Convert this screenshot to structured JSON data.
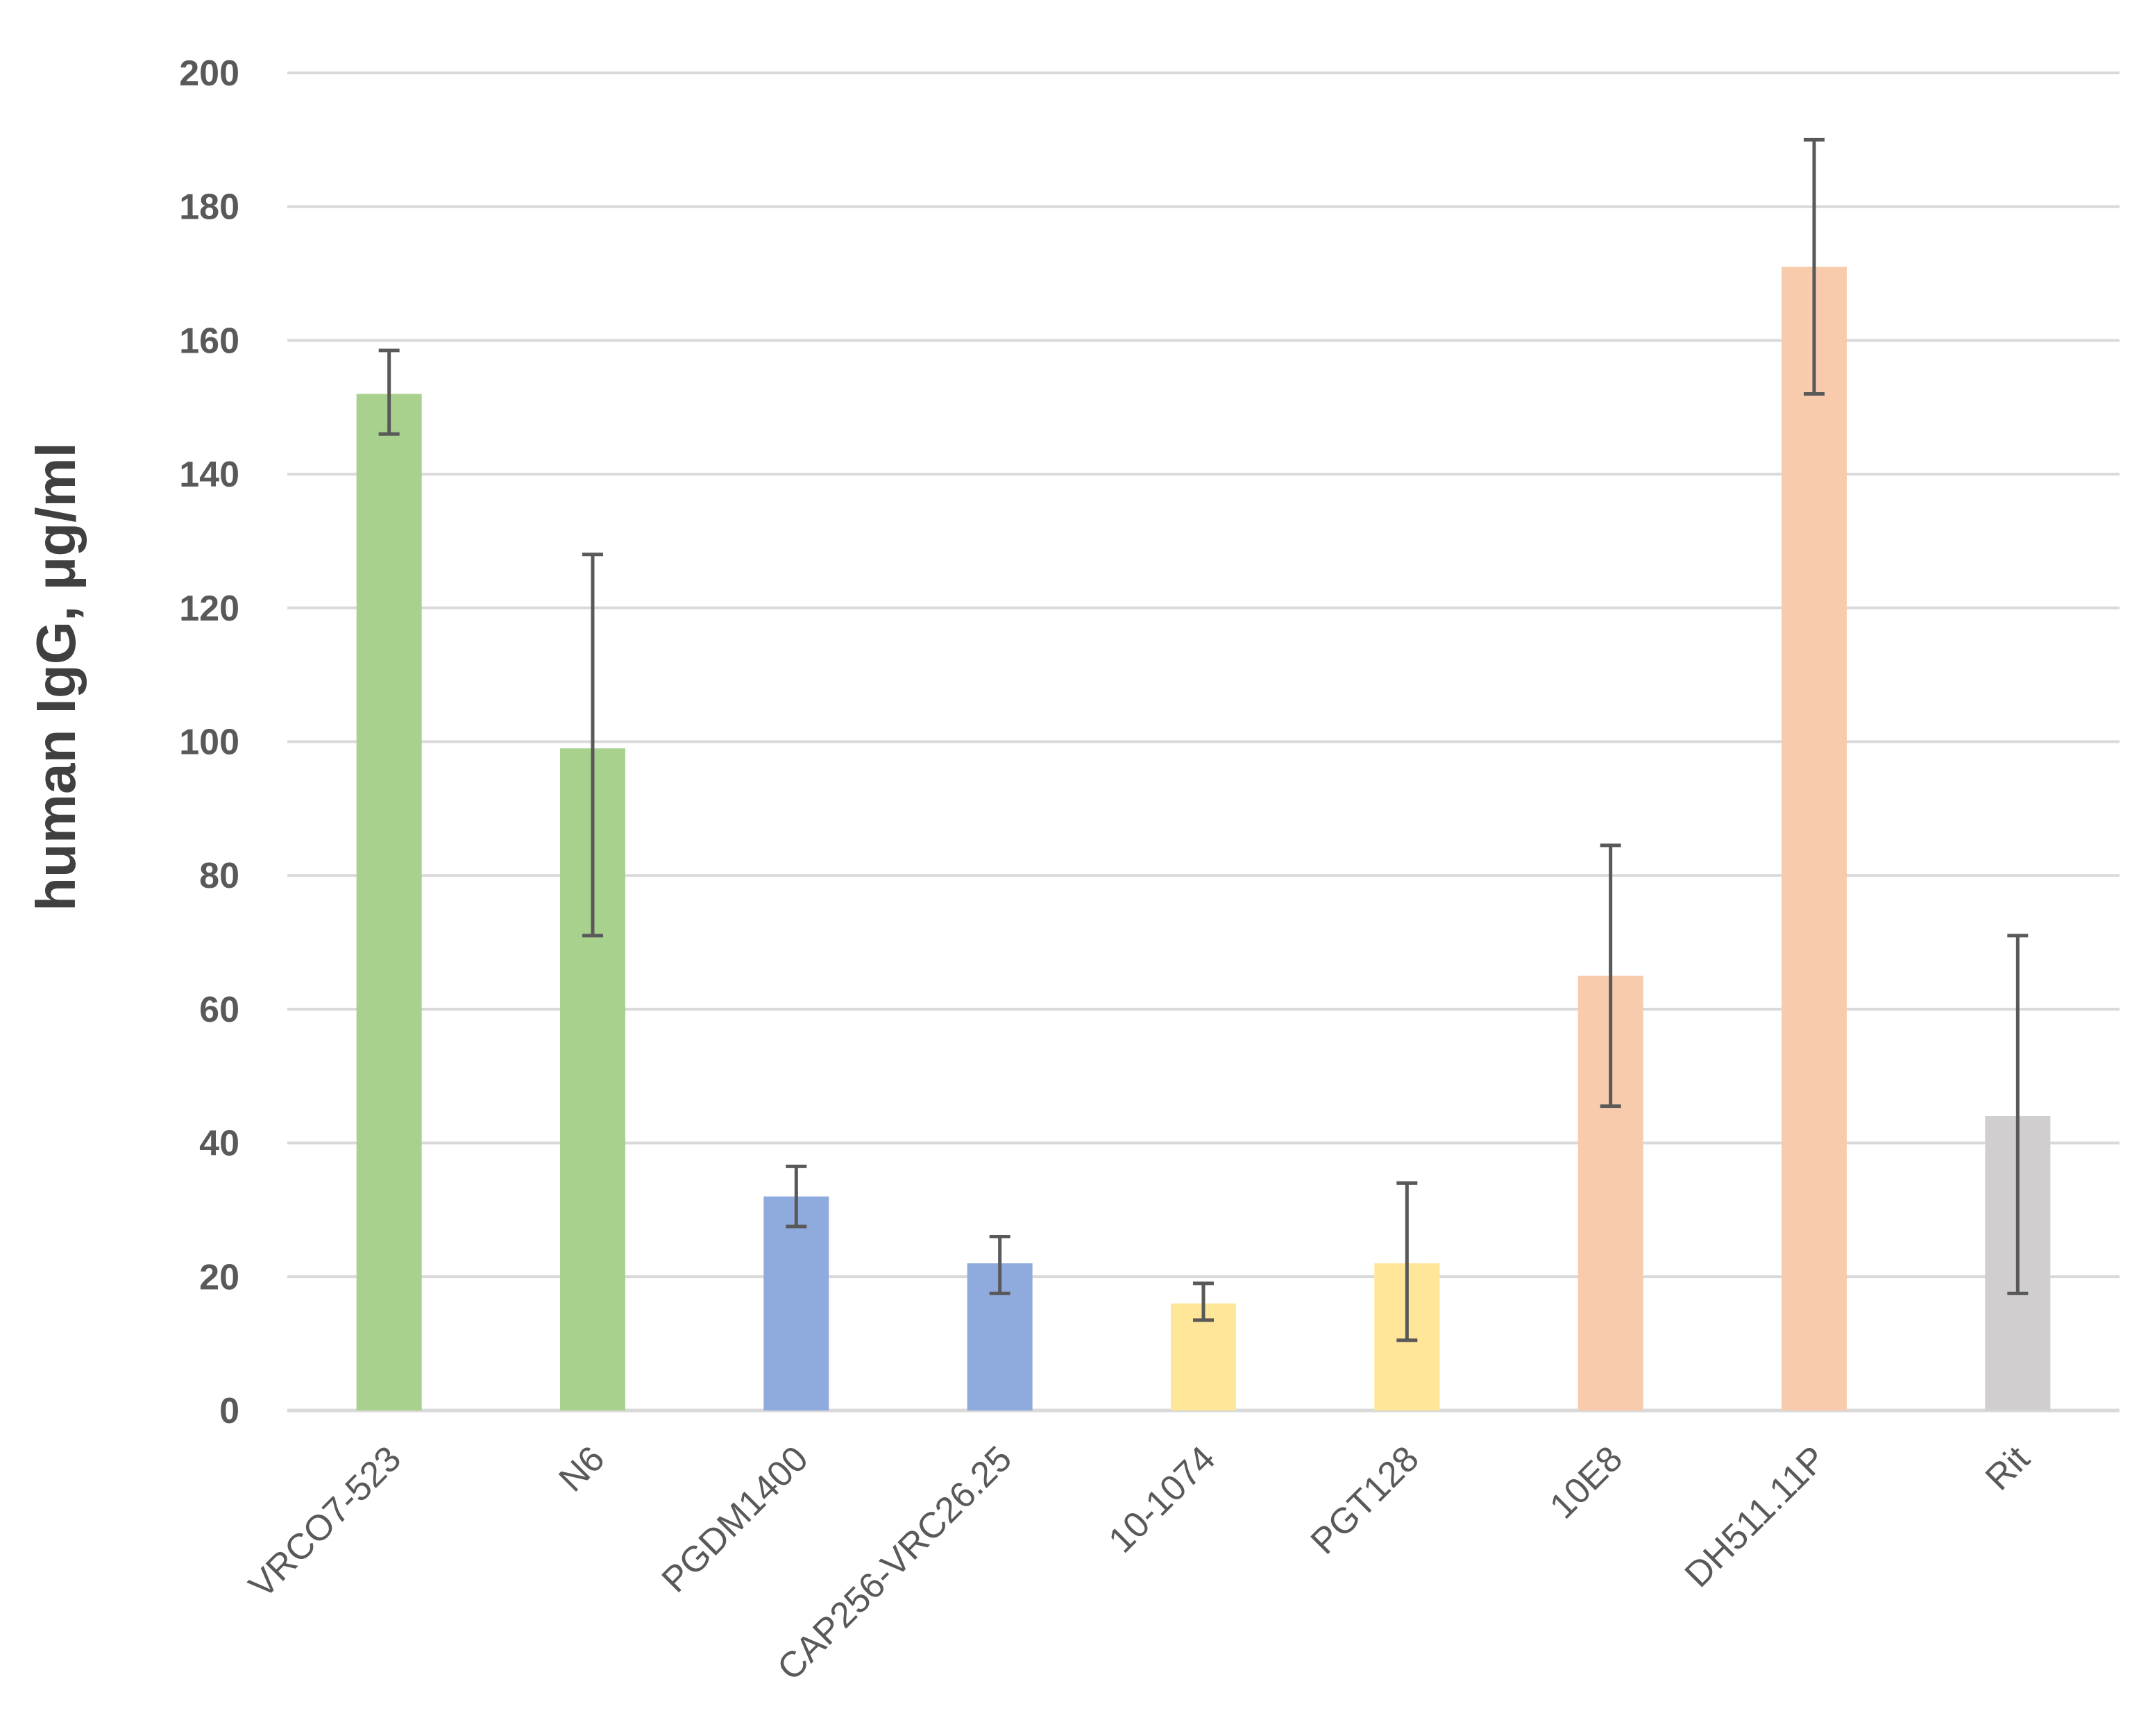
{
  "chart_data": {
    "type": "bar",
    "title": "",
    "xlabel": "",
    "ylabel": "human IgG, μg/ml",
    "ylim": [
      0,
      200
    ],
    "yticks": [
      0,
      20,
      40,
      60,
      80,
      100,
      120,
      140,
      160,
      180,
      200
    ],
    "grid": true,
    "legend": "none",
    "categories": [
      "VRCO7-523",
      "N6",
      "PGDM1400",
      "CAP256-VRC26.25",
      "10-1074",
      "PGT128",
      "10E8",
      "DH511.11P",
      "Rit"
    ],
    "values": [
      152,
      99,
      32,
      22,
      16,
      22,
      65,
      171,
      44
    ],
    "error_low": [
      146,
      71,
      27.5,
      17.5,
      13.5,
      10.5,
      45.5,
      152,
      17.5
    ],
    "error_high": [
      158.5,
      128,
      36.5,
      26,
      19,
      34,
      84.5,
      190,
      71
    ],
    "bar_colors": [
      "#a9d18e",
      "#a9d18e",
      "#8faadc",
      "#8faadc",
      "#ffe699",
      "#ffe699",
      "#f8cbad",
      "#f8cbad",
      "#d0cece"
    ],
    "colors": {
      "grid": "#d9d9d9",
      "text": "#595959",
      "error_bar": "#595959"
    }
  }
}
